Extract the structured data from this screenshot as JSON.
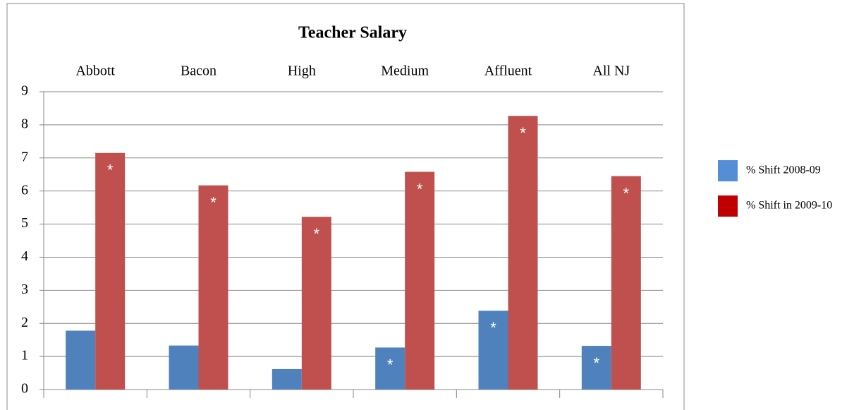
{
  "chart_data": {
    "type": "bar",
    "title": "Teacher Salary",
    "categories": [
      "Abbott",
      "Bacon",
      "High",
      "Medium",
      "Affluent",
      "All NJ"
    ],
    "series": [
      {
        "name": "% Shift 2008-09",
        "color": "#4f81bd",
        "legend_color": "#558ed5",
        "values": [
          1.78,
          1.33,
          0.62,
          1.27,
          2.38,
          1.32
        ],
        "flags": [
          null,
          null,
          null,
          "*",
          "*",
          "*"
        ]
      },
      {
        "name": "% Shift in 2009-10",
        "color": "#c0504d",
        "legend_color": "#c00000",
        "values": [
          7.15,
          6.17,
          5.22,
          6.58,
          8.27,
          6.45
        ],
        "flags": [
          "*",
          "*",
          "*",
          "*",
          "*",
          "*"
        ]
      }
    ],
    "ylim": [
      0,
      9
    ],
    "yticks": [
      0,
      1,
      2,
      3,
      4,
      5,
      6,
      7,
      8,
      9
    ],
    "grid": true,
    "legend": "right"
  }
}
